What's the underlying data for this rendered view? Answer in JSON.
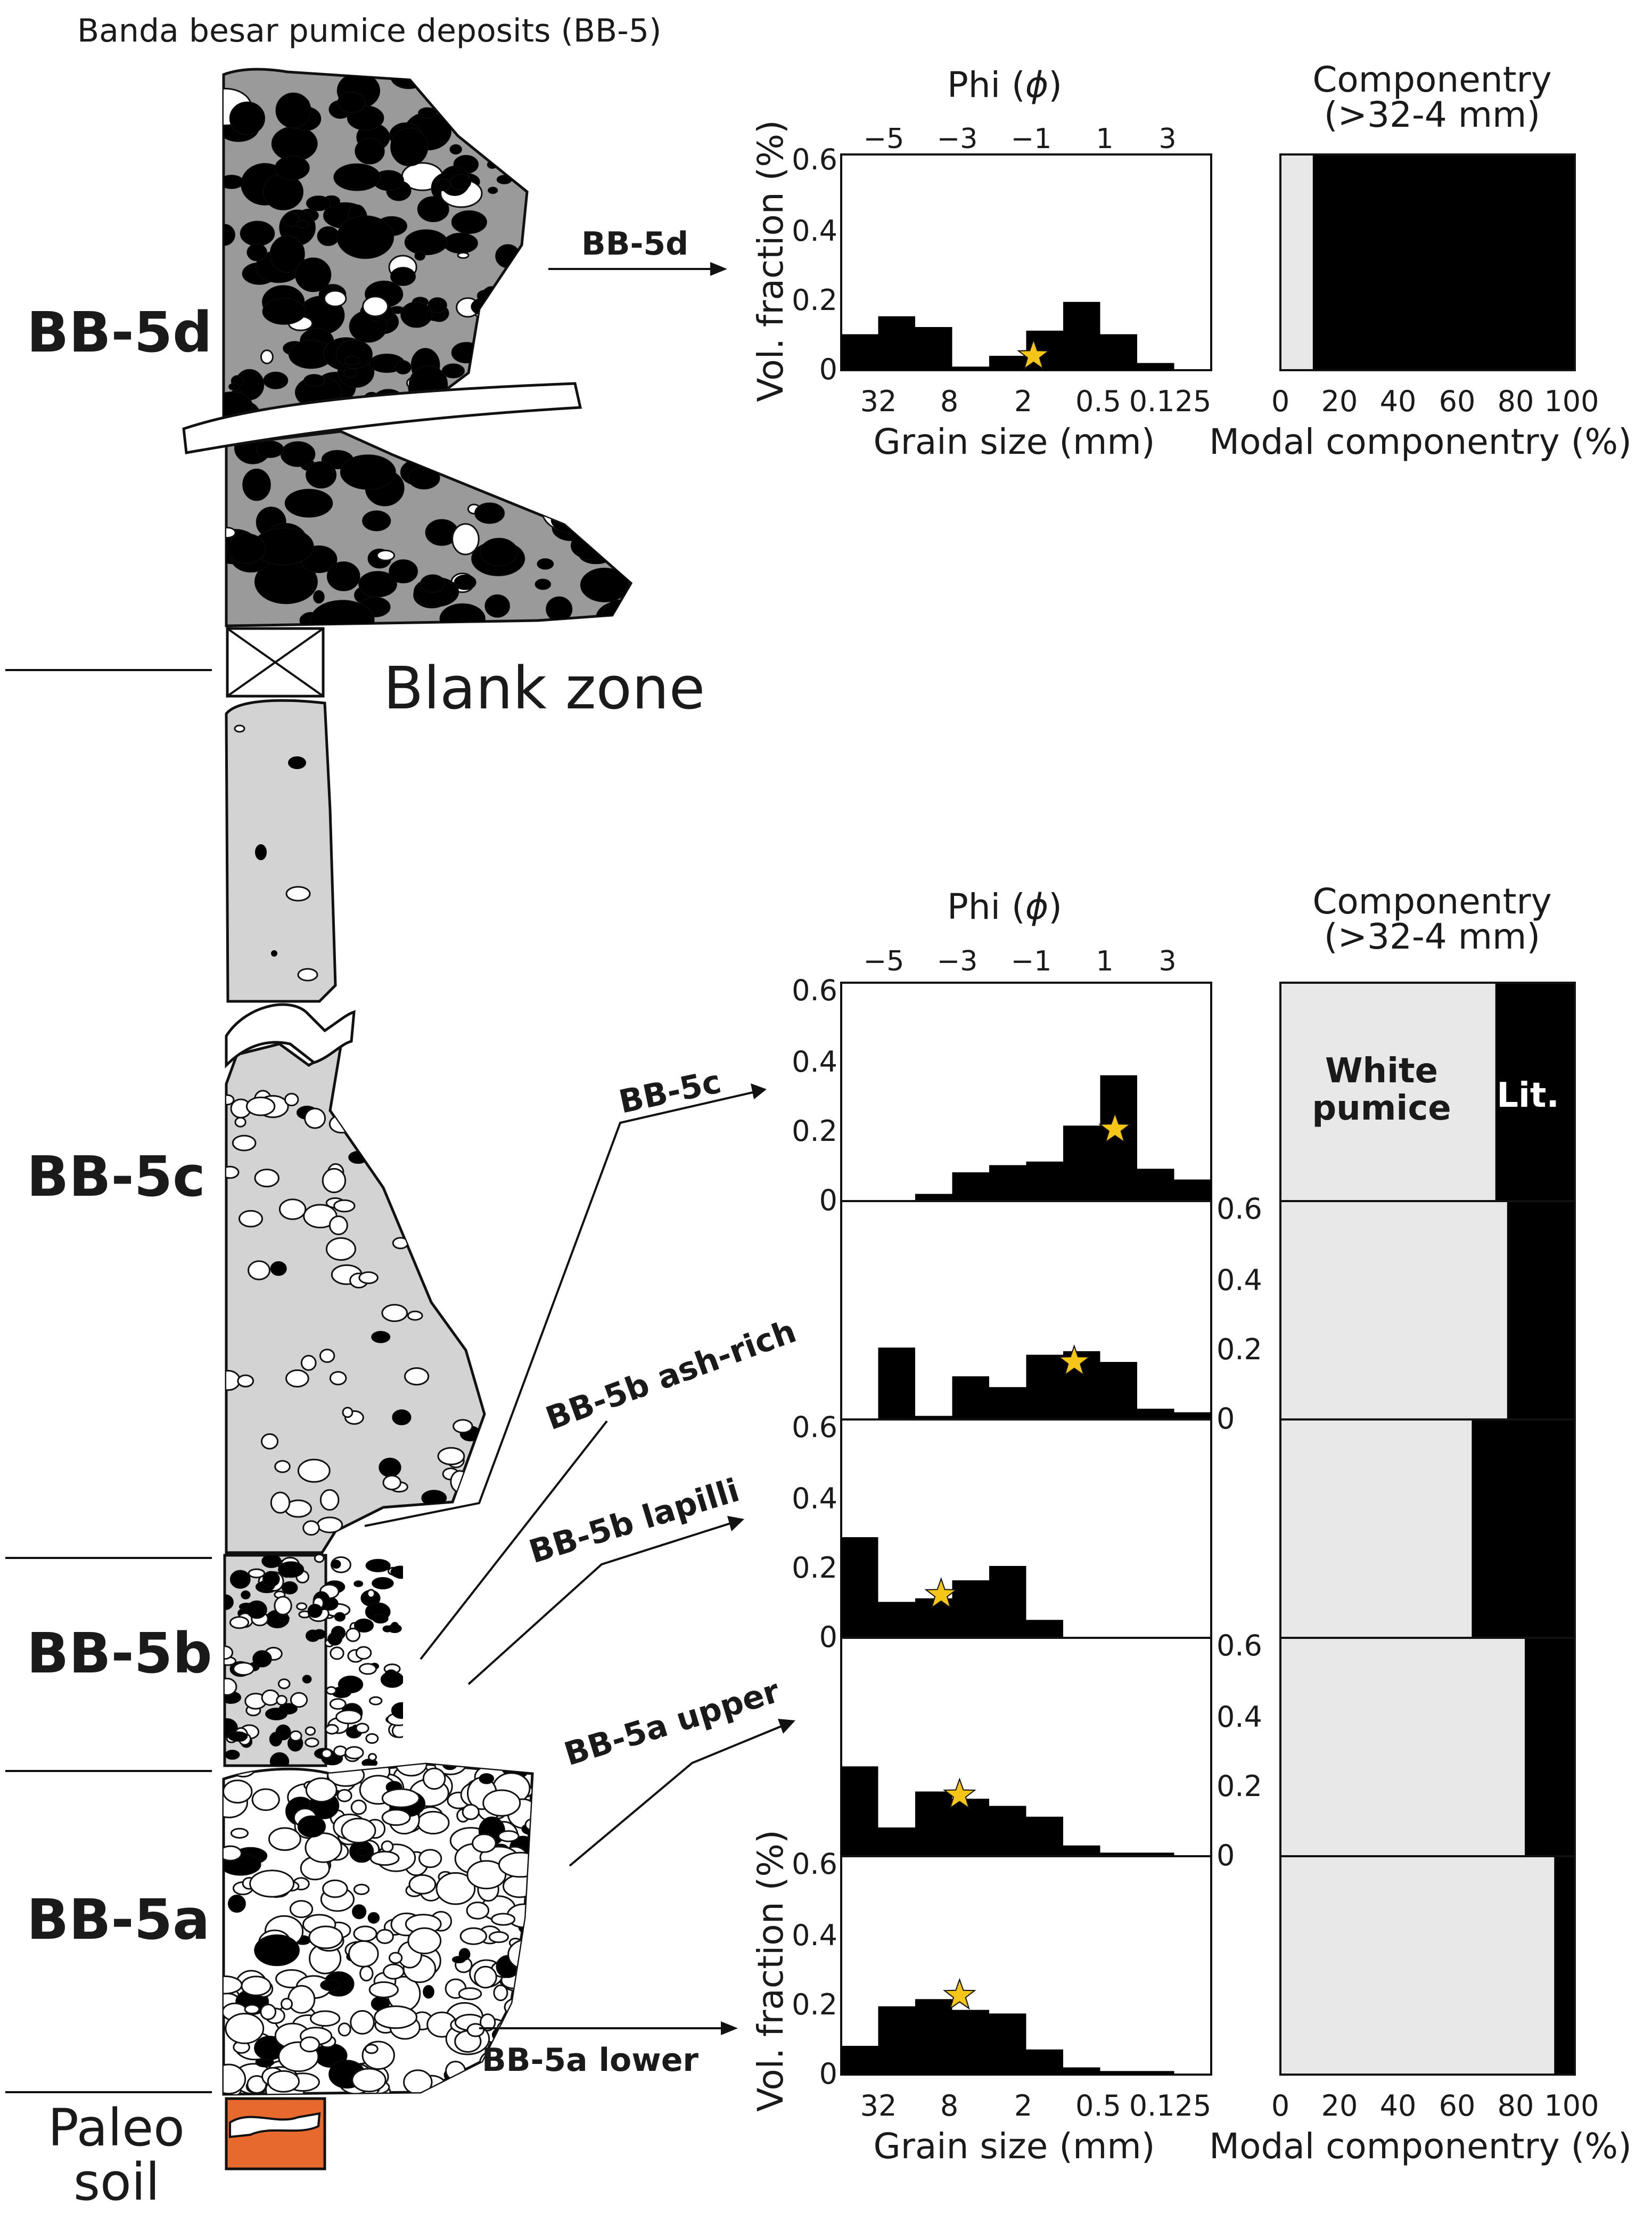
{
  "figure": {
    "title": "Banda besar pumice deposits (BB-5)",
    "units": [
      {
        "id": "d",
        "label": "BB-5d"
      },
      {
        "id": "c",
        "label": "BB-5c"
      },
      {
        "id": "b",
        "label": "BB-5b"
      },
      {
        "id": "a",
        "label": "BB-5a"
      }
    ],
    "blank_zone": "Blank zone",
    "paleosoil": [
      "Paleo",
      "soil"
    ],
    "sample_arrows": [
      "BB-5d",
      "BB-5c",
      "BB-5b ash-rich",
      "BB-5b lapilli",
      "BB-5a upper",
      "BB-5a lower"
    ],
    "colors": {
      "bb5d_matrix": "#9a9a9a",
      "light_matrix": "#d3d3d3",
      "clast_dark": "#000000",
      "pumice_white": "#ffffff",
      "paleosoil": "#e8692e",
      "histogram": "#000000",
      "star": "#f5c518",
      "white_pumice_bar": "#e8e8e8",
      "lithic_bar": "#000000"
    }
  },
  "axes": {
    "phi_title": "Phi (",
    "phi_symbol": "ϕ",
    "phi_close": ")",
    "phi_ticks": [
      "−5",
      "−3",
      "−1",
      "1",
      "3"
    ],
    "grain_ticks": [
      "32",
      "8",
      "2",
      "0.5",
      "0.125"
    ],
    "grain_label": "Grain size (mm)",
    "vol_label": "Vol. fraction (%)",
    "y_ticks": [
      "0",
      "0.2",
      "0.4",
      "0.6"
    ],
    "comp_title_1": "Componentry",
    "comp_title_2": "(>32-4 mm)",
    "comp_ticks": [
      "0",
      "20",
      "40",
      "60",
      "80",
      "100"
    ],
    "comp_label": "Modal componentry (%)",
    "white_pumice_1": "White",
    "white_pumice_2": "pumice",
    "lithic": "Lit."
  },
  "chart_data": [
    {
      "type": "bar",
      "sample": "BB-5d",
      "x_phi_bins": [
        -6,
        -5,
        -4,
        -3,
        -2,
        -1,
        0,
        1,
        2,
        3
      ],
      "values": [
        0.1,
        0.15,
        0.12,
        0.01,
        0.04,
        0.11,
        0.19,
        0.1,
        0.02,
        0
      ],
      "ylim": [
        0,
        0.6
      ],
      "star_phi": -1.3,
      "star_value": 0.04,
      "componentry": {
        "white_pumice": 11,
        "lithic": 89
      }
    },
    {
      "type": "bar",
      "sample": "BB-5c",
      "x_phi_bins": [
        -6,
        -5,
        -4,
        -3,
        -2,
        -1,
        0,
        1,
        2,
        3
      ],
      "values": [
        0,
        0,
        0.02,
        0.08,
        0.1,
        0.11,
        0.21,
        0.35,
        0.09,
        0.06
      ],
      "ylim": [
        0,
        0.6
      ],
      "star_phi": 0.9,
      "star_value": 0.2,
      "componentry": {
        "white_pumice": 73,
        "lithic": 27
      }
    },
    {
      "type": "bar",
      "sample": "BB-5b ash-rich",
      "x_phi_bins": [
        -6,
        -5,
        -4,
        -3,
        -2,
        -1,
        0,
        1,
        2,
        3
      ],
      "values": [
        0,
        0.2,
        0.01,
        0.12,
        0.09,
        0.18,
        0.19,
        0.16,
        0.03,
        0.02
      ],
      "ylim": [
        0,
        0.6
      ],
      "star_phi": -0.2,
      "star_value": 0.16,
      "componentry": {
        "white_pumice": 77,
        "lithic": 23
      }
    },
    {
      "type": "bar",
      "sample": "BB-5b lapilli",
      "x_phi_bins": [
        -6,
        -5,
        -4,
        -3,
        -2,
        -1,
        0,
        1,
        2,
        3
      ],
      "values": [
        0.28,
        0.1,
        0.11,
        0.16,
        0.2,
        0.05,
        0,
        0,
        0,
        0
      ],
      "ylim": [
        0,
        0.6
      ],
      "star_phi": -3.8,
      "star_value": 0.12,
      "componentry": {
        "white_pumice": 65,
        "lithic": 35
      }
    },
    {
      "type": "bar",
      "sample": "BB-5a upper",
      "x_phi_bins": [
        -6,
        -5,
        -4,
        -3,
        -2,
        -1,
        0,
        1,
        2,
        3
      ],
      "values": [
        0.25,
        0.08,
        0.18,
        0.16,
        0.14,
        0.11,
        0.03,
        0.01,
        0.01,
        0
      ],
      "ylim": [
        0,
        0.6
      ],
      "star_phi": -3.3,
      "star_value": 0.17,
      "componentry": {
        "white_pumice": 83,
        "lithic": 17
      }
    },
    {
      "type": "bar",
      "sample": "BB-5a lower",
      "x_phi_bins": [
        -6,
        -5,
        -4,
        -3,
        -2,
        -1,
        0,
        1,
        2,
        3
      ],
      "values": [
        0.08,
        0.19,
        0.21,
        0.18,
        0.17,
        0.07,
        0.02,
        0.01,
        0.01,
        0
      ],
      "ylim": [
        0,
        0.6
      ],
      "star_phi": -3.3,
      "star_value": 0.22,
      "componentry": {
        "white_pumice": 93,
        "lithic": 7
      }
    }
  ]
}
